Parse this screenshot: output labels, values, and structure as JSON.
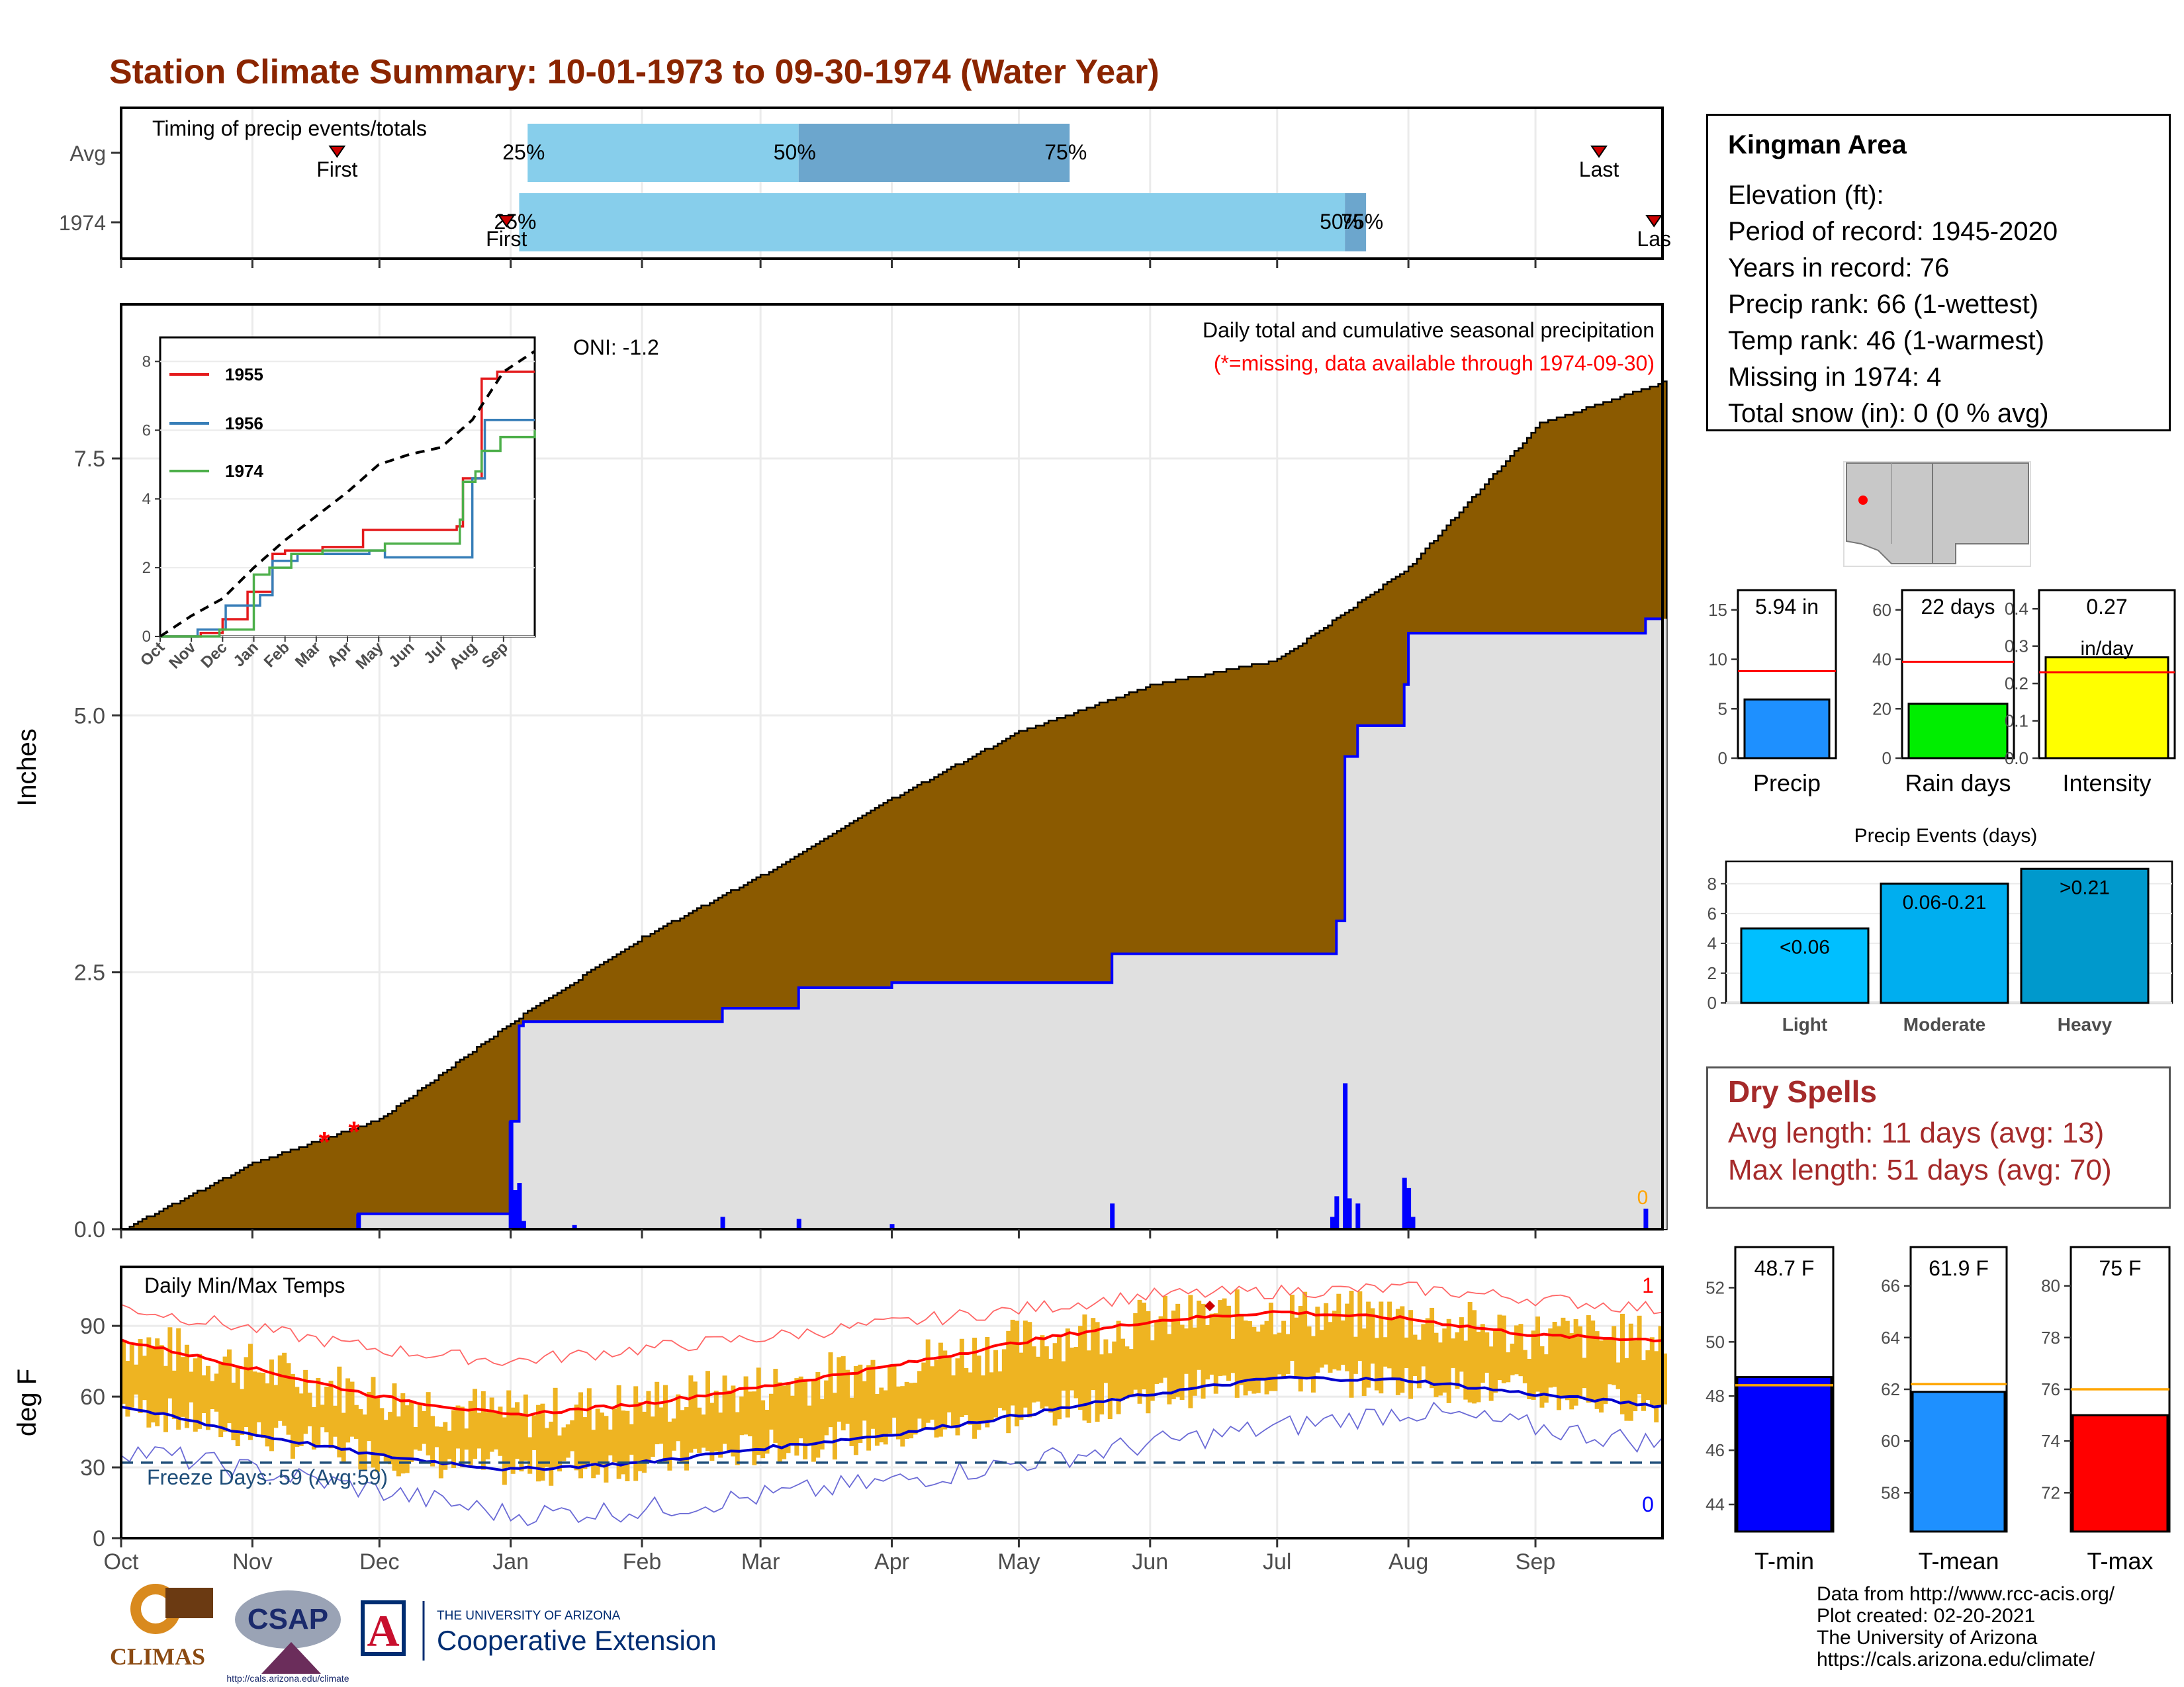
{
  "title": "Station Climate Summary: 10-01-1973 to 09-30-1974 (Water Year)",
  "station": {
    "name": "Kingman Area",
    "lines": [
      "Elevation (ft):",
      "Period of record: 1945-2020",
      "Years in record: 76",
      "Precip rank: 66 (1-wettest)",
      "Temp rank: 46 (1-warmest)",
      "Missing in 1974: 4",
      "Total snow (in): 0 (0 % avg)"
    ]
  },
  "dry_spells": {
    "title": "Dry Spells",
    "avg": "Avg length: 11 days (avg: 13)",
    "max": "Max length: 51 days (avg: 70)"
  },
  "credits": [
    "Data from http://www.rcc-acis.org/",
    "Plot created: 02-20-2021",
    "The University of Arizona",
    "https://cals.arizona.edu/climate/"
  ],
  "logos": {
    "climas": "CLIMAS",
    "csap": "CSAP",
    "csap_url": "http://cals.arizona.edu/climate",
    "ua_small": "THE UNIVERSITY OF ARIZONA",
    "ua_big": "Cooperative Extension",
    "ua_letter": "A"
  },
  "colors": {
    "title": "#8b2500",
    "accum": "#8b5a00",
    "avg_fill": "#e0e0e0",
    "obs_line": "#0000ff",
    "tmax": "#ff0000",
    "tmin": "#0000cd",
    "range_bar": "#eeb422",
    "timing_light": "#87ceeb",
    "timing_dark": "#6ca6cd",
    "dry_text": "#a52a2a",
    "freeze": "#1f4e79"
  },
  "chart_data": [
    {
      "id": "timing",
      "type": "bar",
      "title": "Timing of precip events/totals",
      "rows": [
        {
          "label": "Avg",
          "p25_date": "1974-01-05",
          "p50_date": "1974-03-10",
          "p75_date": "1974-05-13",
          "first_date": "1973-11-21",
          "last_date": "1974-09-15",
          "first_label": "First",
          "last_label": "Last",
          "p25_label": "25%",
          "p50_label": "50%",
          "p75_label": "75%"
        },
        {
          "label": "1974",
          "p25_date": "1974-01-03",
          "p50_date": "1974-07-17",
          "p75_date": "1974-07-22",
          "first_date": "1973-12-31",
          "last_date": "1974-09-28",
          "first_label": "First",
          "last_label": "Las",
          "p25_label": "25%",
          "p50_label": "50%",
          "p75_label": "75%"
        }
      ]
    },
    {
      "id": "precip",
      "type": "area",
      "ylabel": "Inches",
      "yticks": [
        0.0,
        2.5,
        5.0,
        7.5
      ],
      "ylim": [
        0,
        9.0
      ],
      "title": "Daily total and cumulative seasonal precipitation",
      "subtitle": "(*=missing, data available through 1974-09-30)",
      "oni": "ONI: -1.2",
      "zero_label": "0",
      "avg_cumulative": [
        [
          "1973-10-01",
          0
        ],
        [
          "1973-11-01",
          0.65
        ],
        [
          "1973-12-01",
          1.08
        ],
        [
          "1974-01-01",
          2.02
        ],
        [
          "1974-02-01",
          2.85
        ],
        [
          "1974-03-01",
          3.45
        ],
        [
          "1974-04-01",
          4.2
        ],
        [
          "1974-05-01",
          4.85
        ],
        [
          "1974-06-01",
          5.3
        ],
        [
          "1974-07-01",
          5.55
        ],
        [
          "1974-08-01",
          6.45
        ],
        [
          "1974-09-01",
          7.85
        ],
        [
          "1974-09-30",
          8.25
        ]
      ],
      "obs_cumulative": [
        [
          "1973-10-01",
          0
        ],
        [
          "1973-11-25",
          0
        ],
        [
          "1973-11-26",
          0.15
        ],
        [
          "1973-12-31",
          0.15
        ],
        [
          "1974-01-01",
          1.05
        ],
        [
          "1974-01-03",
          1.98
        ],
        [
          "1974-01-04",
          2.02
        ],
        [
          "1974-02-20",
          2.15
        ],
        [
          "1974-03-10",
          2.35
        ],
        [
          "1974-04-01",
          2.4
        ],
        [
          "1974-05-23",
          2.68
        ],
        [
          "1974-07-14",
          2.68
        ],
        [
          "1974-07-15",
          3.0
        ],
        [
          "1974-07-17",
          4.6
        ],
        [
          "1974-07-20",
          4.9
        ],
        [
          "1974-07-31",
          5.3
        ],
        [
          "1974-08-01",
          5.8
        ],
        [
          "1974-09-25",
          5.8
        ],
        [
          "1974-09-26",
          5.94
        ],
        [
          "1974-09-30",
          5.94
        ]
      ],
      "daily": [
        [
          "1973-11-26",
          0.15
        ],
        [
          "1974-01-01",
          1.05
        ],
        [
          "1974-01-02",
          0.38
        ],
        [
          "1974-01-03",
          0.45
        ],
        [
          "1974-01-04",
          0.08
        ],
        [
          "1974-01-16",
          0.04
        ],
        [
          "1974-02-20",
          0.12
        ],
        [
          "1974-03-10",
          0.1
        ],
        [
          "1974-04-01",
          0.05
        ],
        [
          "1974-05-23",
          0.25
        ],
        [
          "1974-07-14",
          0.12
        ],
        [
          "1974-07-15",
          0.32
        ],
        [
          "1974-07-17",
          1.42
        ],
        [
          "1974-07-18",
          0.3
        ],
        [
          "1974-07-20",
          0.25
        ],
        [
          "1974-07-31",
          0.5
        ],
        [
          "1974-08-01",
          0.4
        ],
        [
          "1974-08-02",
          0.12
        ],
        [
          "1974-09-26",
          0.2
        ]
      ],
      "missing": [
        "1973-11-18",
        "1973-11-25"
      ]
    },
    {
      "id": "inset",
      "type": "line",
      "yticks": [
        0,
        2,
        4,
        6,
        8
      ],
      "xticks": [
        "Oct",
        "Nov",
        "Dec",
        "Jan",
        "Feb",
        "Mar",
        "Apr",
        "May",
        "Jun",
        "Jul",
        "Aug",
        "Sep"
      ],
      "series": [
        {
          "name": "1955",
          "color": "#e41a1c",
          "values": [
            [
              0,
              0
            ],
            [
              1.3,
              0.1
            ],
            [
              2,
              0.5
            ],
            [
              2.8,
              1.3
            ],
            [
              3.6,
              2.4
            ],
            [
              4,
              2.5
            ],
            [
              5.2,
              2.6
            ],
            [
              6.3,
              2.6
            ],
            [
              6.5,
              3.1
            ],
            [
              9.5,
              3.2
            ],
            [
              9.7,
              4.6
            ],
            [
              10.3,
              7.5
            ],
            [
              10.8,
              7.7
            ],
            [
              12,
              7.7
            ]
          ]
        },
        {
          "name": "1956",
          "color": "#377eb8",
          "values": [
            [
              0,
              0
            ],
            [
              1.2,
              0.2
            ],
            [
              2.1,
              0.9
            ],
            [
              3.2,
              1.2
            ],
            [
              3.6,
              2.2
            ],
            [
              4.4,
              2.4
            ],
            [
              6.7,
              2.5
            ],
            [
              7.2,
              2.3
            ],
            [
              9.9,
              2.3
            ],
            [
              10,
              4.6
            ],
            [
              10.4,
              6.3
            ],
            [
              11,
              6.3
            ],
            [
              12,
              6.3
            ]
          ]
        },
        {
          "name": "1974",
          "color": "#4daf4a",
          "values": [
            [
              0,
              0
            ],
            [
              1.9,
              0.2
            ],
            [
              3,
              1.8
            ],
            [
              3.5,
              2.0
            ],
            [
              4.2,
              2.4
            ],
            [
              5.2,
              2.5
            ],
            [
              7.2,
              2.7
            ],
            [
              9.5,
              2.7
            ],
            [
              9.6,
              3.4
            ],
            [
              9.7,
              4.5
            ],
            [
              10.1,
              4.8
            ],
            [
              10.3,
              5.4
            ],
            [
              10.9,
              5.8
            ],
            [
              12,
              6.0
            ]
          ]
        },
        {
          "name": "avg",
          "dashed": true,
          "color": "#000000",
          "values": [
            [
              0,
              0
            ],
            [
              1,
              0.6
            ],
            [
              2,
              1.1
            ],
            [
              3,
              2.0
            ],
            [
              4,
              2.8
            ],
            [
              5,
              3.5
            ],
            [
              6,
              4.2
            ],
            [
              7,
              5
            ],
            [
              8,
              5.3
            ],
            [
              9,
              5.5
            ],
            [
              10,
              6.3
            ],
            [
              11,
              7.7
            ],
            [
              12,
              8.3
            ]
          ]
        }
      ]
    },
    {
      "id": "temps",
      "type": "line",
      "title": "Daily Min/Max Temps",
      "ylabel": "deg F",
      "yticks": [
        0,
        30,
        60,
        90
      ],
      "ylim": [
        0,
        115
      ],
      "freeze_label": "Freeze Days: 59 (Avg:59)",
      "freeze_line": 32,
      "max_label": "1",
      "min_label": "0",
      "normal_max": [
        [
          0,
          84
        ],
        [
          31,
          72
        ],
        [
          61,
          60
        ],
        [
          92,
          52
        ],
        [
          123,
          57
        ],
        [
          151,
          64
        ],
        [
          182,
          73
        ],
        [
          212,
          83
        ],
        [
          243,
          92
        ],
        [
          273,
          96
        ],
        [
          304,
          93
        ],
        [
          334,
          86
        ],
        [
          364,
          84
        ]
      ],
      "normal_min": [
        [
          0,
          56
        ],
        [
          31,
          44
        ],
        [
          61,
          35
        ],
        [
          92,
          29
        ],
        [
          123,
          32
        ],
        [
          151,
          38
        ],
        [
          182,
          44
        ],
        [
          212,
          52
        ],
        [
          243,
          61
        ],
        [
          273,
          68
        ],
        [
          304,
          67
        ],
        [
          334,
          61
        ],
        [
          364,
          56
        ]
      ],
      "record_max": [
        [
          0,
          98
        ],
        [
          61,
          80
        ],
        [
          92,
          75
        ],
        [
          151,
          85
        ],
        [
          243,
          103
        ],
        [
          304,
          106
        ],
        [
          364,
          97
        ]
      ],
      "record_min": [
        [
          0,
          38
        ],
        [
          61,
          20
        ],
        [
          92,
          10
        ],
        [
          123,
          12
        ],
        [
          182,
          24
        ],
        [
          243,
          40
        ],
        [
          304,
          54
        ],
        [
          364,
          40
        ]
      ]
    },
    {
      "id": "precip_bars",
      "type": "bar",
      "categories": [
        "Precip",
        "Rain days",
        "Intensity"
      ],
      "values": [
        5.94,
        22,
        0.27
      ],
      "averages": [
        8.8,
        39,
        0.23
      ],
      "value_labels": [
        "5.94 in",
        "22 days",
        "0.27"
      ],
      "unit_label": "in/day",
      "yticks": [
        [
          0,
          5,
          10,
          15
        ],
        [
          0,
          20,
          40,
          60
        ],
        [
          0.0,
          0.1,
          0.2,
          0.3,
          0.4
        ]
      ],
      "ylims": [
        [
          0,
          17
        ],
        [
          0,
          68
        ],
        [
          0,
          0.45
        ]
      ]
    },
    {
      "id": "events",
      "type": "bar",
      "title": "Precip Events (days)",
      "categories": [
        "Light",
        "Moderate",
        "Heavy"
      ],
      "values": [
        5,
        8,
        9
      ],
      "value_labels": [
        "<0.06",
        "0.06-0.21",
        ">0.21"
      ],
      "yticks": [
        0,
        2,
        4,
        6,
        8
      ],
      "ylim": [
        0,
        9.5
      ]
    },
    {
      "id": "temp_bars",
      "type": "bar",
      "categories": [
        "T-min",
        "T-mean",
        "T-max"
      ],
      "values": [
        48.7,
        61.9,
        75
      ],
      "averages": [
        48.4,
        62.2,
        76
      ],
      "value_labels": [
        "48.7 F",
        "61.9 F",
        "75 F"
      ],
      "yticks": [
        [
          44,
          46,
          48,
          50,
          52
        ],
        [
          58,
          60,
          62,
          64,
          66
        ],
        [
          72,
          74,
          76,
          78,
          80
        ]
      ],
      "ylims": [
        [
          43,
          53.5
        ],
        [
          56.5,
          67.5
        ],
        [
          70.5,
          81.5
        ]
      ]
    }
  ],
  "months": [
    "Oct",
    "Nov",
    "Dec",
    "Jan",
    "Feb",
    "Mar",
    "Apr",
    "May",
    "Jun",
    "Jul",
    "Aug",
    "Sep"
  ]
}
